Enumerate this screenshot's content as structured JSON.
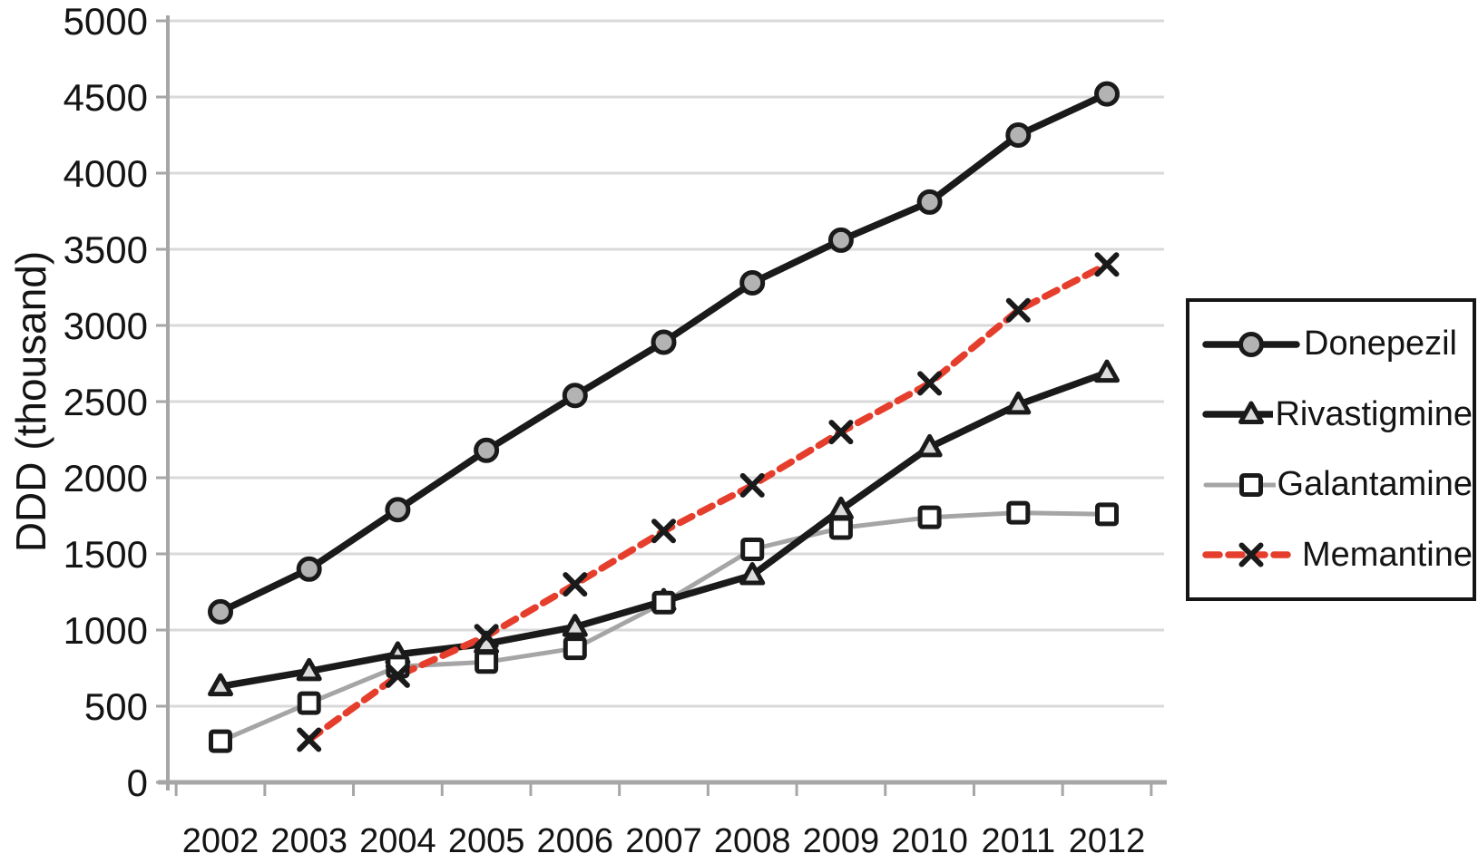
{
  "figure": {
    "background": "#ffffff",
    "text_color": "#141414",
    "grid_color": "#d9d9d9",
    "axis_color": "#a6a6a6"
  },
  "chart_data": {
    "type": "line",
    "title": "",
    "xlabel": "",
    "ylabel": "DDD (thousand)",
    "categories": [
      "2002",
      "2003",
      "2004",
      "2005",
      "2006",
      "2007",
      "2008",
      "2009",
      "2010",
      "2011",
      "2012"
    ],
    "ylim": [
      0,
      5000
    ],
    "ytick_step": 500,
    "y_ticks": [
      0,
      500,
      1000,
      1500,
      2000,
      2500,
      3000,
      3500,
      4000,
      4500,
      5000
    ],
    "grid": "horizontal",
    "legend_position": "right",
    "series": [
      {
        "name": "Donepezil",
        "color": "#1a1a1a",
        "line": "solid",
        "marker": "circle",
        "marker_fill": "#b3b3b3",
        "values": [
          1120,
          1400,
          1790,
          2180,
          2540,
          2890,
          3280,
          3560,
          3810,
          4250,
          4520
        ]
      },
      {
        "name": "Rivastigmine",
        "color": "#1a1a1a",
        "line": "solid",
        "marker": "triangle",
        "marker_fill": "#dcdcdc",
        "values": [
          630,
          730,
          840,
          910,
          1020,
          1190,
          1360,
          1790,
          2200,
          2480,
          2690
        ]
      },
      {
        "name": "Galantamine",
        "color": "#a5a5a5",
        "line": "solid",
        "marker": "square",
        "marker_fill": "#ffffff",
        "values": [
          270,
          520,
          760,
          790,
          880,
          1180,
          1530,
          1670,
          1740,
          1770,
          1760
        ]
      },
      {
        "name": "Memantine",
        "color": "#e53e2c",
        "line": "dashed",
        "marker": "x",
        "marker_fill": "#1a1a1a",
        "values": [
          null,
          280,
          700,
          960,
          1300,
          1650,
          1950,
          2300,
          2620,
          3100,
          3400
        ]
      }
    ]
  }
}
